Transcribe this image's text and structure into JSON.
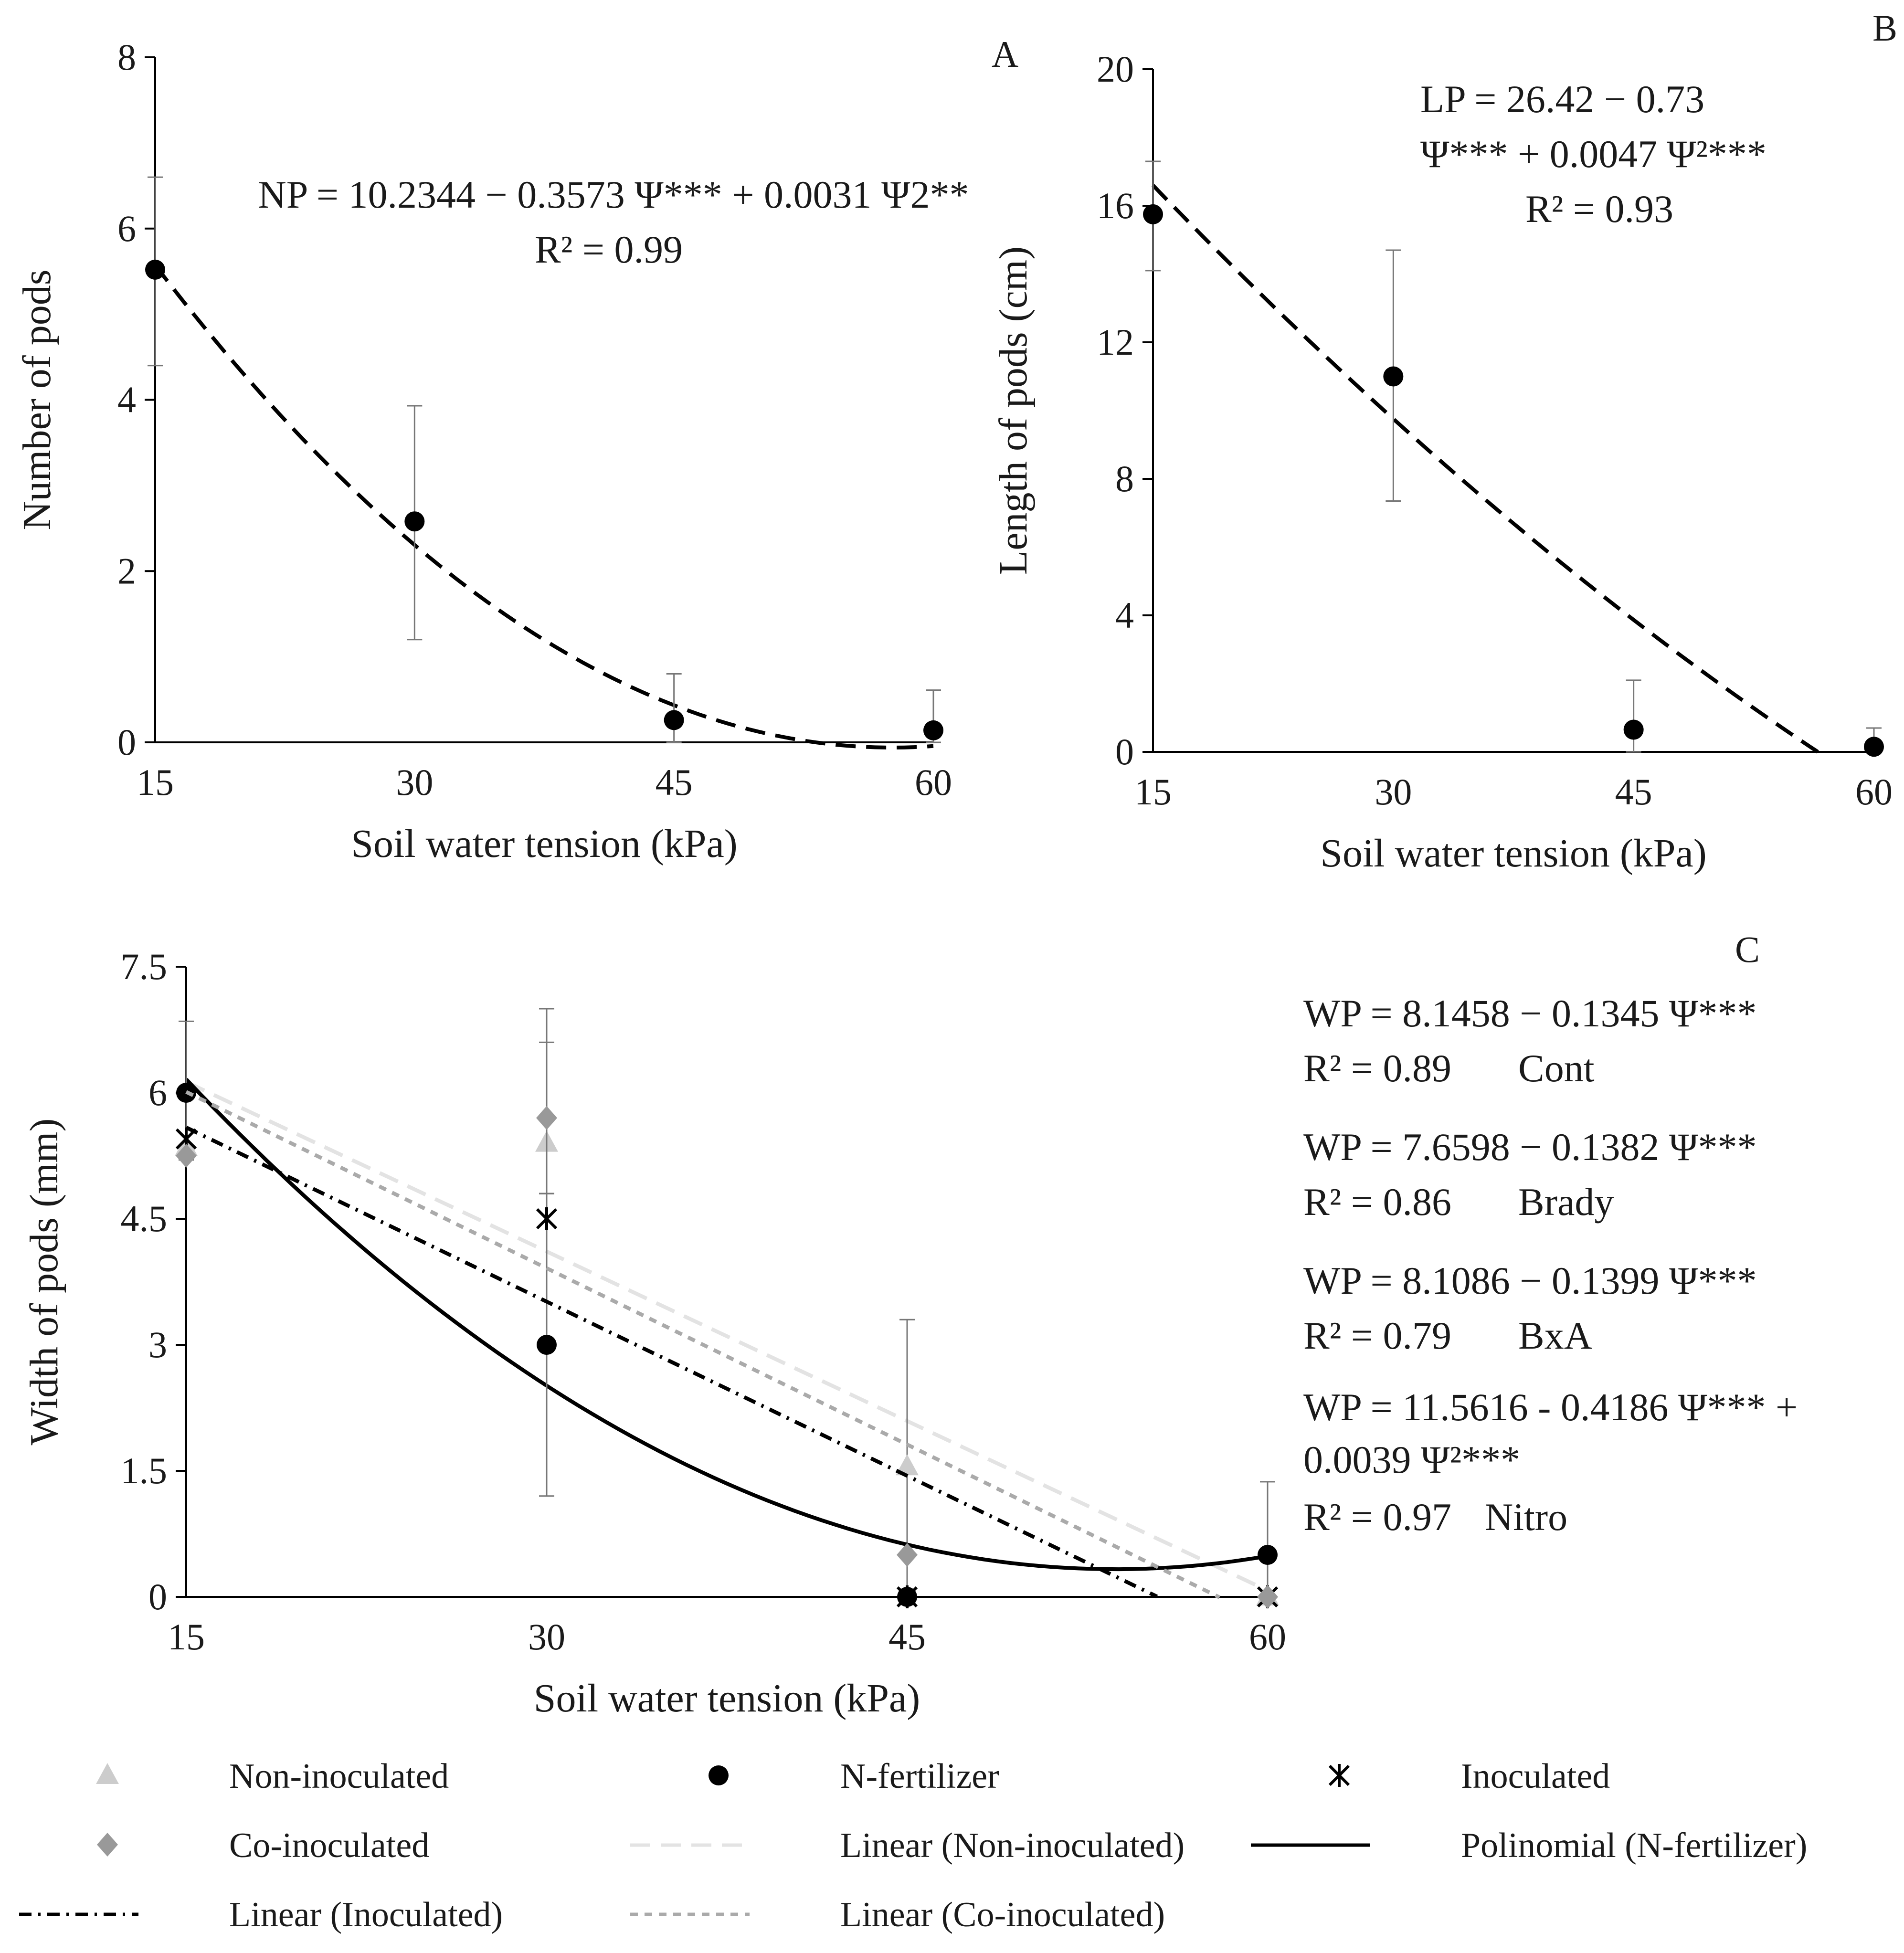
{
  "chart_data": [
    {
      "panel": "A",
      "type": "scatter",
      "xlabel": "Soil water tension (kPa)",
      "ylabel": "Number of pods",
      "x_ticks": [
        "15",
        "30",
        "45",
        "60"
      ],
      "y_ticks": [
        "0",
        "2",
        "4",
        "6",
        "8"
      ],
      "xlim": [
        15,
        60
      ],
      "ylim": [
        0,
        8
      ],
      "series": [
        {
          "name": "Number of pods",
          "marker": "circle",
          "points": [
            {
              "x": 15,
              "y": 5.52,
              "err_low": 4.4,
              "err_high": 6.6
            },
            {
              "x": 30,
              "y": 2.58,
              "err_low": 1.2,
              "err_high": 3.93
            },
            {
              "x": 45,
              "y": 0.26,
              "err_low": 0.0,
              "err_high": 0.8
            },
            {
              "x": 60,
              "y": 0.14,
              "err_low": 0.0,
              "err_high": 0.61
            }
          ],
          "trend": {
            "kind": "polynomial",
            "coef": [
              10.2344,
              -0.3573,
              0.0031
            ],
            "style": "long-dash"
          }
        }
      ],
      "equation": {
        "line1": "NP = 10.2344 − 0.3573 Ψ*** + 0.0031 Ψ2**",
        "line2": "R² = 0.99"
      }
    },
    {
      "panel": "B",
      "type": "scatter",
      "xlabel": "Soil water tension (kPa)",
      "ylabel": "Length of pods (cm)",
      "x_ticks": [
        "15",
        "30",
        "45",
        "60"
      ],
      "y_ticks": [
        "0",
        "4",
        "8",
        "12",
        "16",
        "20"
      ],
      "xlim": [
        15,
        60
      ],
      "ylim": [
        0,
        20
      ],
      "series": [
        {
          "name": "Length of pods",
          "marker": "circle",
          "points": [
            {
              "x": 15,
              "y": 15.75,
              "err_low": 14.1,
              "err_high": 17.3
            },
            {
              "x": 30,
              "y": 11.0,
              "err_low": 7.35,
              "err_high": 14.7
            },
            {
              "x": 45,
              "y": 0.65,
              "err_low": 0.0,
              "err_high": 2.1
            },
            {
              "x": 60,
              "y": 0.15,
              "err_low": 0.0,
              "err_high": 0.7
            }
          ],
          "trend": {
            "kind": "polynomial",
            "x_range": [
              15,
              56.5
            ],
            "y_start": 16.6,
            "y_end": 0.0,
            "style": "long-dash"
          }
        }
      ],
      "equation": {
        "line1": "LP = 26.42 − 0.73",
        "line2": "Ψ*** + 0.0047 Ψ²***",
        "line3": "R² = 0.93"
      }
    },
    {
      "panel": "C",
      "type": "scatter",
      "xlabel": "Soil water tension (kPa)",
      "ylabel": "Width of pods (mm)",
      "x_ticks": [
        "15",
        "30",
        "45",
        "60"
      ],
      "y_ticks": [
        "0",
        "1.5",
        "3",
        "4.5",
        "6",
        "7.5"
      ],
      "xlim": [
        15,
        60
      ],
      "ylim": [
        0,
        7.5
      ],
      "series": [
        {
          "name": "Non-inoculated",
          "marker": "triangle",
          "color": "#cccccc",
          "points": [
            {
              "x": 15,
              "y": 5.35
            },
            {
              "x": 30,
              "y": 5.4,
              "err_low": 4.8,
              "err_high": 6.6
            },
            {
              "x": 45,
              "y": 1.55,
              "err_low": 0.0,
              "err_high": 3.3
            },
            {
              "x": 60,
              "y": 0.0
            }
          ],
          "trend": {
            "kind": "linear",
            "label": "Linear (Non-inoculated)",
            "coef": [
              8.1458,
              -0.1345
            ],
            "x_range": [
              15,
              60
            ],
            "color": "#e3e3e3",
            "style": "long-dash"
          }
        },
        {
          "name": "N-fertilizer",
          "marker": "circle",
          "color": "#000000",
          "points": [
            {
              "x": 15,
              "y": 6.0,
              "err_low": 5.2,
              "err_high": 6.85
            },
            {
              "x": 30,
              "y": 3.0,
              "err_low": 1.2,
              "err_high": 4.8
            },
            {
              "x": 45,
              "y": 0.0
            },
            {
              "x": 60,
              "y": 0.5,
              "err_low": 0.0,
              "err_high": 1.37
            }
          ],
          "trend": {
            "kind": "polynomial",
            "label": "Polinomial (N-fertilizer)",
            "coef": [
              11.5616,
              -0.4186,
              0.0039
            ],
            "x_range": [
              15,
              60
            ],
            "color": "#000000",
            "style": "solid"
          }
        },
        {
          "name": "Inoculated",
          "marker": "asterisk",
          "color": "#000000",
          "points": [
            {
              "x": 15,
              "y": 5.45
            },
            {
              "x": 30,
              "y": 4.5
            },
            {
              "x": 45,
              "y": 0.0
            },
            {
              "x": 60,
              "y": 0.0
            }
          ],
          "trend": {
            "kind": "linear",
            "label": "Linear (Inoculated)",
            "coef": [
              7.6598,
              -0.1382
            ],
            "x_range": [
              15,
              55.4
            ],
            "color": "#000000",
            "style": "dash-dot"
          }
        },
        {
          "name": "Co-inoculated",
          "marker": "diamond",
          "color": "#999999",
          "points": [
            {
              "x": 15,
              "y": 5.25
            },
            {
              "x": 30,
              "y": 5.7,
              "err_low": 4.8,
              "err_high": 7.0
            },
            {
              "x": 45,
              "y": 0.5
            },
            {
              "x": 60,
              "y": 0.0
            }
          ],
          "trend": {
            "kind": "linear",
            "label": "Linear (Co-inoculated)",
            "coef": [
              8.1086,
              -0.1399
            ],
            "x_range": [
              15,
              58.0
            ],
            "color": "#aaaaaa",
            "style": "short-dash"
          }
        }
      ],
      "equations": [
        {
          "line1": "WP = 8.1458 − 0.1345 Ψ***",
          "line2": "R² = 0.89",
          "tag": "Cont"
        },
        {
          "line1": "WP = 7.6598 − 0.1382 Ψ***",
          "line2": "R² = 0.86",
          "tag": "Brady"
        },
        {
          "line1": "WP = 8.1086 − 0.1399 Ψ***",
          "line2": "R² = 0.79",
          "tag": "BxA"
        },
        {
          "line1": "WP = 11.5616 - 0.4186 Ψ*** +",
          "line1b": "0.0039 Ψ²***",
          "line2": "R² = 0.97",
          "tag": "Nitro"
        }
      ],
      "legend": {
        "placement": "bottom",
        "entries": [
          {
            "label": "Non-inoculated",
            "symbol": "triangle",
            "color": "#cccccc"
          },
          {
            "label": "N-fertilizer",
            "symbol": "circle",
            "color": "#000000"
          },
          {
            "label": "Inoculated",
            "symbol": "asterisk",
            "color": "#000000"
          },
          {
            "label": "Co-inoculated",
            "symbol": "diamond",
            "color": "#999999"
          },
          {
            "label": "Linear (Non-inoculated)",
            "symbol": "long-dash",
            "color": "#e3e3e3"
          },
          {
            "label": "Polinomial (N-fertilizer)",
            "symbol": "solid",
            "color": "#000000"
          },
          {
            "label": "Linear (Inoculated)",
            "symbol": "dash-dot",
            "color": "#000000"
          },
          {
            "label": "Linear (Co-inoculated)",
            "symbol": "short-dash",
            "color": "#aaaaaa"
          }
        ]
      }
    }
  ]
}
